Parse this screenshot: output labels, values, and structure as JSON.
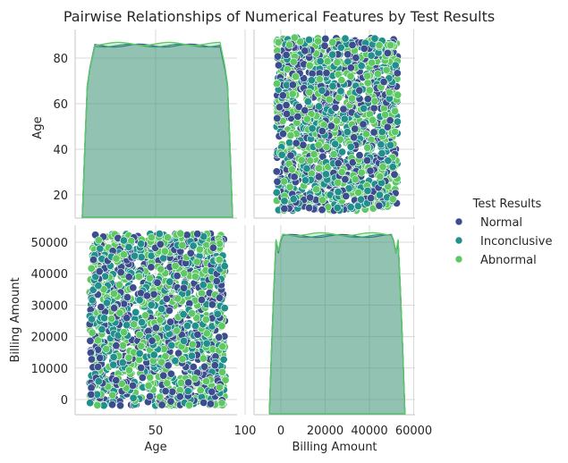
{
  "chart_data": {
    "type": "scatter",
    "title": "Pairwise Relationships of Numerical Features by Test Results",
    "variables": [
      "Age",
      "Billing Amount"
    ],
    "axes": {
      "Age": {
        "range": [
          13,
          89
        ],
        "ticks": [
          50,
          100
        ],
        "ticks_y": [
          20,
          40,
          60,
          80
        ]
      },
      "Billing Amount": {
        "range": [
          -2000,
          52800
        ],
        "ticks": [
          0,
          20000,
          40000,
          60000
        ],
        "ticks_y": [
          0,
          10000,
          20000,
          30000,
          40000,
          50000
        ]
      }
    },
    "legend": {
      "title": "Test Results",
      "placement": "right",
      "entries": [
        {
          "name": "Normal",
          "color": "#3b4d8c"
        },
        {
          "name": "Inconclusive",
          "color": "#21908d"
        },
        {
          "name": "Abnormal",
          "color": "#5ec962"
        }
      ]
    },
    "diagonal": "kde",
    "offdiagonal": "scatter",
    "grid": true,
    "points_per_series": 520
  }
}
